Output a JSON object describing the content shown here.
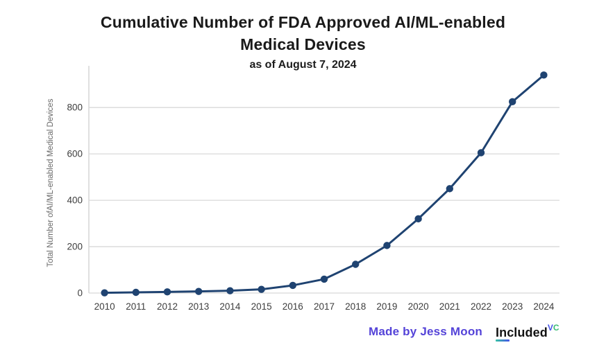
{
  "chart_data": {
    "type": "line",
    "title": "Cumulative Number of FDA Approved AI/ML-enabled Medical Devices",
    "subtitle": "as of August 7, 2024",
    "categories": [
      "2010",
      "2011",
      "2012",
      "2013",
      "2014",
      "2015",
      "2016",
      "2017",
      "2018",
      "2019",
      "2020",
      "2021",
      "2022",
      "2023",
      "2024"
    ],
    "values": [
      1,
      3,
      5,
      7,
      10,
      16,
      33,
      60,
      124,
      205,
      320,
      450,
      605,
      825,
      940
    ],
    "xlabel": "",
    "ylabel": "Total Number ofAI/ML-enabled Medical Devices",
    "ylim": [
      0,
      950
    ],
    "yticks": [
      0,
      200,
      400,
      600,
      800
    ],
    "grid": true,
    "legend": false,
    "marker": "circle"
  },
  "footer": {
    "credit": "Made by Jess Moon",
    "logo_text": "Included",
    "logo_superscript_v": "V",
    "logo_superscript_c": "C"
  },
  "colors": {
    "line": "#1f4371",
    "marker": "#1f4371",
    "gridline": "#d8d8d8",
    "axis_line": "#cfcfcf",
    "tick_text": "#3d3d3d",
    "axis_title_text": "#686868",
    "title_text": "#1a1a1a",
    "credit_text": "#5443d8",
    "logo_text": "#131313",
    "logo_v": "#4553e9",
    "logo_c": "#3abc74",
    "underline_from": "#37c3a5",
    "underline_to": "#4553e9",
    "background": "#ffffff"
  }
}
